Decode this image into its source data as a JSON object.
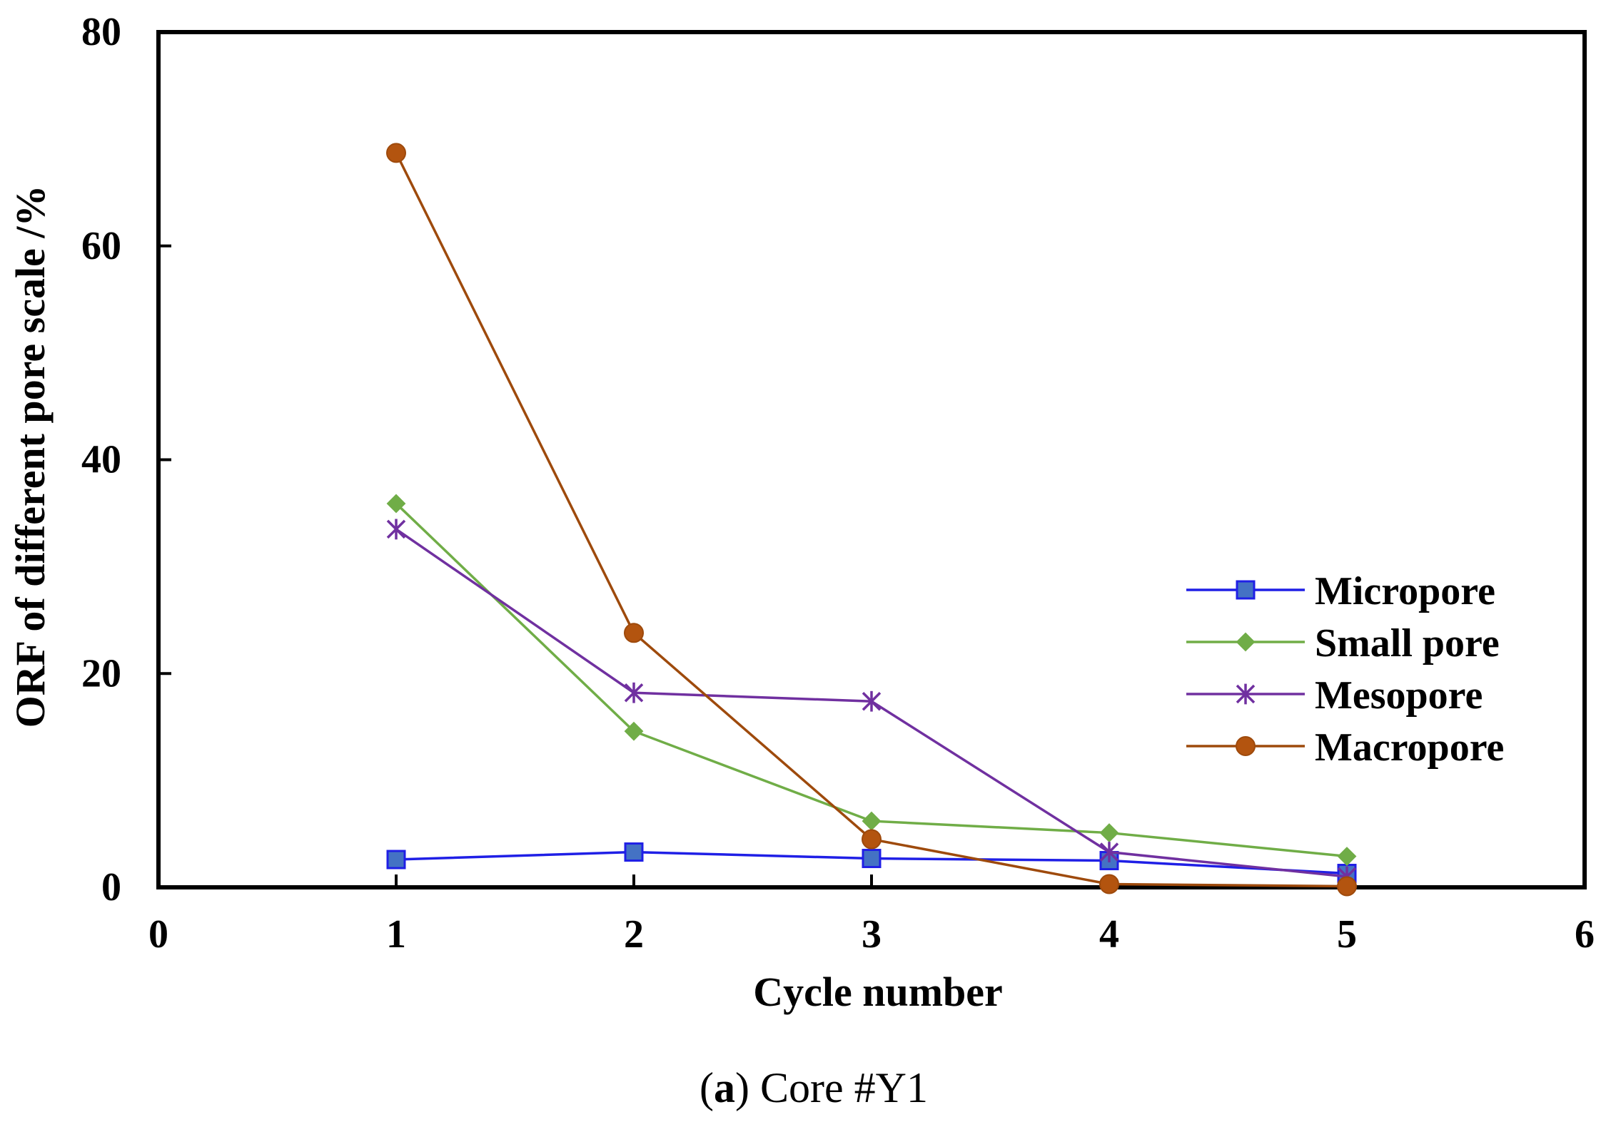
{
  "chart_data": {
    "type": "line",
    "title": "",
    "xlabel": "Cycle number",
    "ylabel": "ORF of different pore scale /%",
    "xlim": [
      0,
      6
    ],
    "ylim": [
      0,
      80
    ],
    "xticks": [
      0,
      1,
      2,
      3,
      4,
      5,
      6
    ],
    "yticks": [
      0,
      20,
      40,
      60,
      80
    ],
    "grid": false,
    "legend_position": "right",
    "x": [
      1,
      2,
      3,
      4,
      5
    ],
    "series": [
      {
        "name": "Micropore",
        "values": [
          2.6,
          3.3,
          2.7,
          2.5,
          1.3
        ],
        "color": "#1f1fe6",
        "marker": "square",
        "marker_fill": "#4472c4"
      },
      {
        "name": "Small pore",
        "values": [
          35.9,
          14.6,
          6.2,
          5.1,
          2.9
        ],
        "color": "#70ad47",
        "marker": "diamond",
        "marker_fill": "#70ad47"
      },
      {
        "name": "Mesopore",
        "values": [
          33.5,
          18.2,
          17.4,
          3.3,
          1.0
        ],
        "color": "#7030a0",
        "marker": "asterisk",
        "marker_fill": "#7030a0"
      },
      {
        "name": "Macropore",
        "values": [
          68.7,
          23.8,
          4.5,
          0.3,
          0.1
        ],
        "color": "#9e4a0c",
        "marker": "circle",
        "marker_fill": "#b3540f"
      }
    ]
  },
  "caption": {
    "label": "a",
    "text": "Core #Y1"
  }
}
